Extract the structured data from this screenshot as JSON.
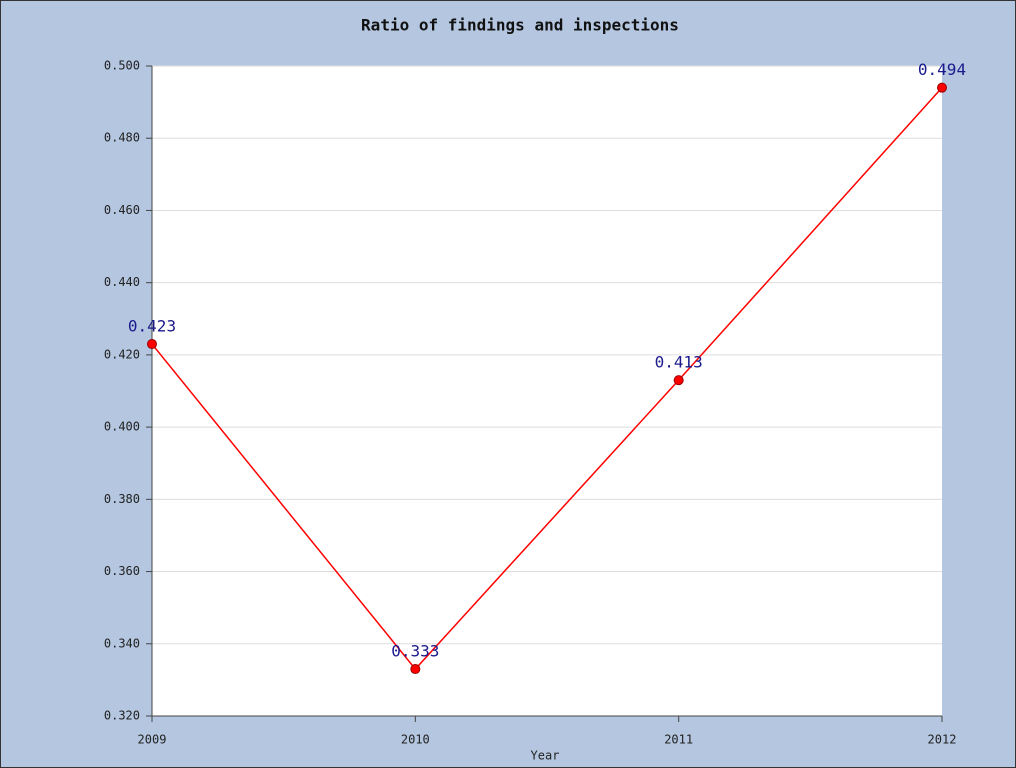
{
  "chart_data": {
    "type": "line",
    "title": "Ratio of findings and inspections",
    "x_label": "Year",
    "categories": [
      "2009",
      "2010",
      "2011",
      "2012"
    ],
    "values": [
      0.423,
      0.333,
      0.413,
      0.494
    ],
    "color": "#ff0000",
    "ylim": [
      0.32,
      0.5
    ],
    "yticks": [
      {
        "value": 0.32,
        "label": "0.320"
      },
      {
        "value": 0.34,
        "label": "0.340"
      },
      {
        "value": 0.36,
        "label": "0.360"
      },
      {
        "value": 0.38,
        "label": "0.380"
      },
      {
        "value": 0.4,
        "label": "0.400"
      },
      {
        "value": 0.42,
        "label": "0.420"
      },
      {
        "value": 0.44,
        "label": "0.440"
      },
      {
        "value": 0.46,
        "label": "0.460"
      },
      {
        "value": 0.48,
        "label": "0.480"
      },
      {
        "value": 0.5,
        "label": "0.500"
      }
    ],
    "grid": true
  }
}
